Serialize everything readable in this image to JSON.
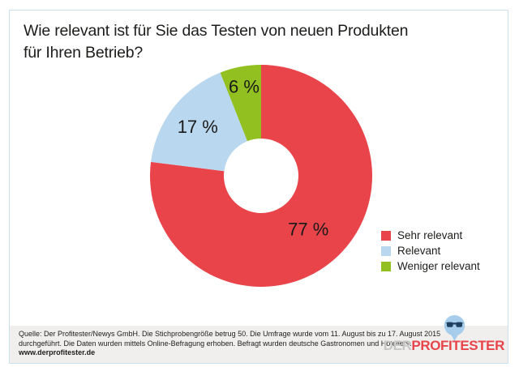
{
  "header": {
    "title_line1": "Wie relevant ist für Sie das Testen von neuen Produkten",
    "title_line2": "für Ihren Betrieb?"
  },
  "chart_data": {
    "type": "pie",
    "donut": true,
    "title": "Wie relevant ist für Sie das Testen von neuen Produkten für Ihren Betrieb?",
    "start_angle_deg": 0,
    "direction": "clockwise",
    "legend_position": "right",
    "segments": [
      {
        "label": "Sehr relevant",
        "value": 77,
        "display": "77 %",
        "color": "#E8444A"
      },
      {
        "label": "Relevant",
        "value": 17,
        "display": "17 %",
        "color": "#B9D7EE"
      },
      {
        "label": "Weniger relevant",
        "value": 6,
        "display": "6 %",
        "color": "#92C021"
      }
    ]
  },
  "footer": {
    "source_line1": "Quelle: Der Profitester/Newys GmbH. Die Stichprobengröße betrug 50. Die Umfrage wurde vom 11. August bis zu 17. August 2015",
    "source_line2": "durchgeführt. Die Daten wurden mittels Online-Befragung erhoben. Befragt wurden deutsche Gastronomen und Hoteliers.",
    "website": "www.derprofitester.de"
  },
  "logo": {
    "prefix": "DER",
    "brand": "PROFITESTER",
    "prefix_color": "#C7C7C7",
    "brand_color": "#E8444A",
    "pin_color": "#A6CDEB",
    "glasses_color": "#20405F",
    "pin_icon": "glasses-pin-icon"
  }
}
